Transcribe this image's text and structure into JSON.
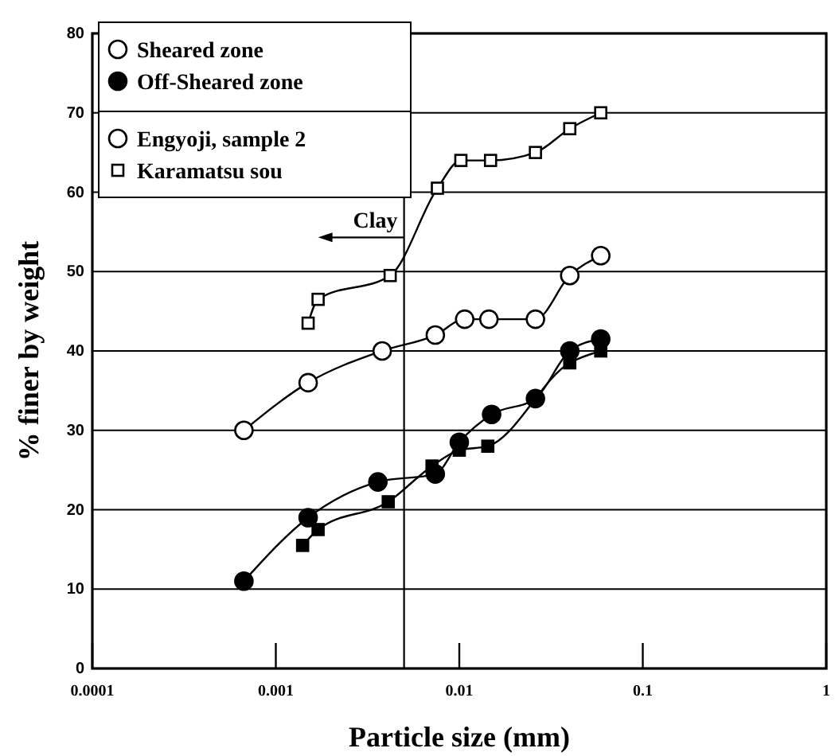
{
  "chart_data": {
    "type": "line",
    "xlabel": "Particle size (mm)",
    "ylabel": "% finer by weight",
    "log": "x",
    "xlim": [
      0.0001,
      1
    ],
    "xticks": [
      0.0001,
      0.001,
      0.01,
      0.1,
      1
    ],
    "ylim": [
      0,
      80
    ],
    "yticks": [
      0,
      10,
      20,
      30,
      40,
      50,
      60,
      70,
      80
    ],
    "grid": "y",
    "legend": "top left",
    "annotations": [
      "Sheared zone"
    ],
    "ref_lines": [
      {
        "axis": "x",
        "value": 0.005,
        "label": "Clay"
      }
    ],
    "series": [
      {
        "name": "Engyoji, sample 2",
        "color": "#ffffff",
        "marker": "circle",
        "x": [
          0.00067,
          0.0015,
          0.0038,
          0.0074,
          0.0107,
          0.0145,
          0.026,
          0.04,
          0.059
        ],
        "values": [
          30,
          36,
          40,
          42,
          44,
          44,
          44,
          49.5,
          52
        ]
      },
      {
        "name": "Karamatsu sou",
        "color": "#ffffff",
        "marker": "square",
        "x": [
          0.0015,
          0.0017,
          0.0042,
          0.0076,
          0.0102,
          0.0148,
          0.026,
          0.04,
          0.059
        ],
        "values": [
          43.5,
          46.5,
          49.5,
          60.5,
          64,
          64,
          65,
          68,
          70
        ]
      },
      {
        "name": "Off-Sheared zone",
        "color": "#000000",
        "marker": "circle",
        "x": [
          0.00067,
          0.0015,
          0.0036,
          0.0074,
          0.01,
          0.015,
          0.026,
          0.04,
          0.059
        ],
        "values": [
          11,
          19,
          23.5,
          24.5,
          28.5,
          32,
          34,
          40,
          41.5
        ]
      },
      {
        "color": "#000000",
        "marker": "square",
        "x": [
          0.0014,
          0.0017,
          0.0041,
          0.0071,
          0.01,
          0.0143,
          0.026,
          0.04,
          0.059
        ],
        "values": [
          15.5,
          17.5,
          21,
          25.5,
          27.5,
          28,
          null,
          38.5,
          40
        ]
      }
    ]
  }
}
